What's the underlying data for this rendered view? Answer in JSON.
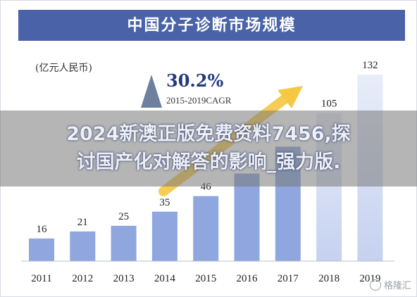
{
  "header": {
    "title": "中国分子诊断市场规模"
  },
  "unit_label": "(亿元人民币)",
  "cagr": {
    "value": "30.2%",
    "label": "2015-2019CAGR"
  },
  "banner": {
    "line1": "2024新澳正版免费资料7456,探",
    "line2": "讨国产化对解答的影响_强力版."
  },
  "watermark": {
    "text": "格隆汇"
  },
  "colors": {
    "title_bg": "#4a63a8",
    "bar": "#8fa6de",
    "bar_light": "#dde4f6",
    "arrow": "#f5c842",
    "triangle": "#6f7f9e"
  },
  "chart_data": {
    "type": "bar",
    "title": "中国分子诊断市场规模",
    "ylabel": "(亿元人民币)",
    "categories": [
      "2011",
      "2012",
      "2013",
      "2014",
      "2015",
      "2016",
      "2017",
      "2018",
      "2019"
    ],
    "values": [
      16,
      21,
      25,
      35,
      46,
      62,
      81,
      105,
      132
    ],
    "data_labels": [
      "16",
      "21",
      "25",
      "35",
      "46",
      "",
      "",
      "105",
      "132"
    ],
    "ylim": [
      0,
      140
    ],
    "annotation": {
      "text": "30.2%",
      "subtext": "2015-2019CAGR"
    }
  }
}
